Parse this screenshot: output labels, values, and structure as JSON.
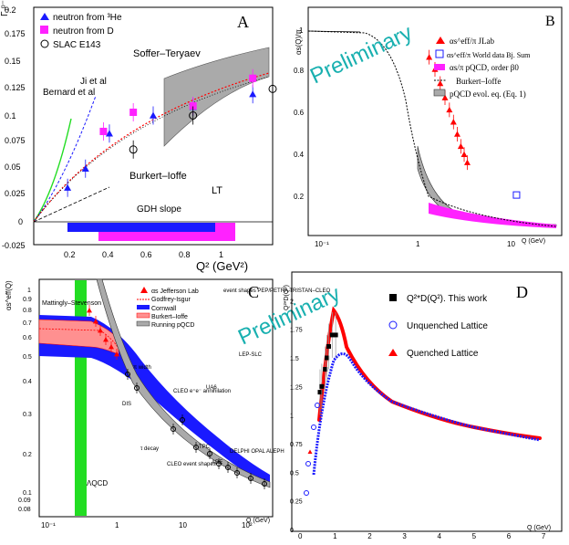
{
  "panels": {
    "A": {
      "letter": "A",
      "yticks": [
        "0.2",
        "0.175",
        "0.15",
        "0.125",
        "0.1",
        "0.075",
        "0.05",
        "0.025",
        "0",
        "-0.025"
      ],
      "xticks": [
        "0.2",
        "0.4",
        "0.6",
        "0.8",
        "1"
      ],
      "xlabel": "Q² (GeV²)",
      "ylabel": "Γ₁ᵖ⁻ⁿ",
      "legend": [
        "neutron from ³He",
        "neutron from D",
        "SLAC E143"
      ],
      "labels": {
        "soffer": "Soffer–Teryaev",
        "ji": "Ji et al",
        "bernard": "Bernard et al",
        "burkert": "Burkert–Ioffe",
        "lt": "LT",
        "gdh": "GDH slope"
      }
    },
    "B": {
      "letter": "B",
      "watermark": "Preliminary",
      "ylabel": "αs(Q)/π",
      "xlabel": "Q (GeV)",
      "xticks": [
        "10⁻¹",
        "1",
        "10"
      ],
      "yticks": [
        "1",
        "0.8",
        "0.6",
        "0.4",
        "0.2"
      ],
      "legend": [
        "αs^eff/π JLab",
        "αs^eff/π World data Bj. Sum",
        "αs/π pQCD, order β0",
        "Burkert–Ioffe",
        "pQCD evol. eq. (Eq. 1)"
      ]
    },
    "C": {
      "letter": "C",
      "watermark": "Preliminary",
      "ylabel": "αs^eff(Q)",
      "xlabel": "Q (GeV)",
      "yticks": [
        "1",
        "0.9",
        "0.8",
        "0.7",
        "0.6",
        "0.5",
        "0.4",
        "0.3",
        "0.2",
        "0.1",
        "0.09",
        "0.08"
      ],
      "xticks": [
        "10⁻¹",
        "1",
        "10",
        "10²"
      ],
      "legend": [
        "αs Jefferson Lab",
        "Godfrey-Isgur",
        "Cornwall",
        "Burkert–Ioffe",
        "Running pQCD"
      ],
      "labels": {
        "matt": "Mattingly–Stevenson",
        "event": "event shapes PEP/PETRA TRISTAN–CLEO",
        "lep": "LEP-SLC",
        "ua6": "UA6",
        "cleo": "CLEO e⁺e⁻ annihilation",
        "pi": "π width",
        "dis": "DIS",
        "tau": "τ decay",
        "tpc": "TPC",
        "delphi": "DELPHI OPAL ALEPH",
        "ccb": "CLEO event shapes",
        "ade": "ADE",
        "lqcd": "ΛQCD"
      }
    },
    "D": {
      "letter": "D",
      "ylabel": "Q²*D(Q²)",
      "xlabel": "Q (GeV)",
      "yticks": [
        "2",
        "1.75",
        "1.5",
        "1.25",
        "1",
        "0.75",
        "0.5",
        "0.25",
        "0"
      ],
      "xticks": [
        "0",
        "1",
        "2",
        "3",
        "4",
        "5",
        "6",
        "7"
      ],
      "legend": [
        "Q²*D(Q²). This work",
        "Unquenched Lattice",
        "Quenched Lattice"
      ]
    }
  },
  "colors": {
    "blue": "#1a1aff",
    "magenta": "#ff22ff",
    "red": "#ff0000",
    "gray": "#aaaaaa",
    "green": "#22dd22",
    "teal": "#19b0b0",
    "pink": "#ff9090"
  },
  "chart_data": [
    {
      "type": "scatter",
      "panel": "A",
      "xlim": [
        0,
        1.2
      ],
      "ylim": [
        -0.025,
        0.2
      ],
      "series": [
        {
          "name": "neutron from ³He",
          "marker": "triangle",
          "x": [
            0.17,
            0.26,
            0.38,
            0.6,
            0.8,
            1.1
          ],
          "y": [
            0.032,
            0.05,
            0.083,
            0.1,
            0.108,
            0.12
          ]
        },
        {
          "name": "neutron from D",
          "marker": "square",
          "x": [
            0.35,
            0.5,
            0.8,
            1.1
          ],
          "y": [
            0.085,
            0.103,
            0.109,
            0.135
          ]
        },
        {
          "name": "SLAC E143",
          "marker": "circle",
          "x": [
            0.5,
            0.8,
            1.2
          ],
          "y": [
            0.068,
            0.1,
            0.125
          ]
        }
      ]
    },
    {
      "type": "scatter",
      "panel": "B",
      "xlog": true,
      "xlim": [
        0.05,
        5
      ],
      "ylim": [
        0,
        1
      ],
      "series": [
        {
          "name": "αs^eff/π JLab",
          "marker": "triangle",
          "x": [
            0.45,
            0.5,
            0.55,
            0.6,
            0.65,
            0.7,
            0.75,
            0.8,
            0.85,
            0.9
          ],
          "y": [
            0.88,
            0.82,
            0.75,
            0.68,
            0.62,
            0.56,
            0.5,
            0.44,
            0.4,
            0.36
          ]
        },
        {
          "name": "αs^eff/π World data Bj. Sum",
          "marker": "square",
          "x": [
            2.2
          ],
          "y": [
            0.2
          ]
        }
      ]
    },
    {
      "type": "scatter",
      "panel": "D",
      "xlim": [
        0,
        7.5
      ],
      "ylim": [
        0,
        2.25
      ],
      "series": [
        {
          "name": "Q²*D(Q²). This work",
          "marker": "square",
          "x": [
            0.55,
            0.6,
            0.7,
            0.75,
            0.8,
            0.9,
            1.0
          ],
          "y": [
            1.2,
            1.25,
            1.4,
            1.5,
            1.6,
            1.7,
            1.7
          ]
        }
      ]
    }
  ]
}
